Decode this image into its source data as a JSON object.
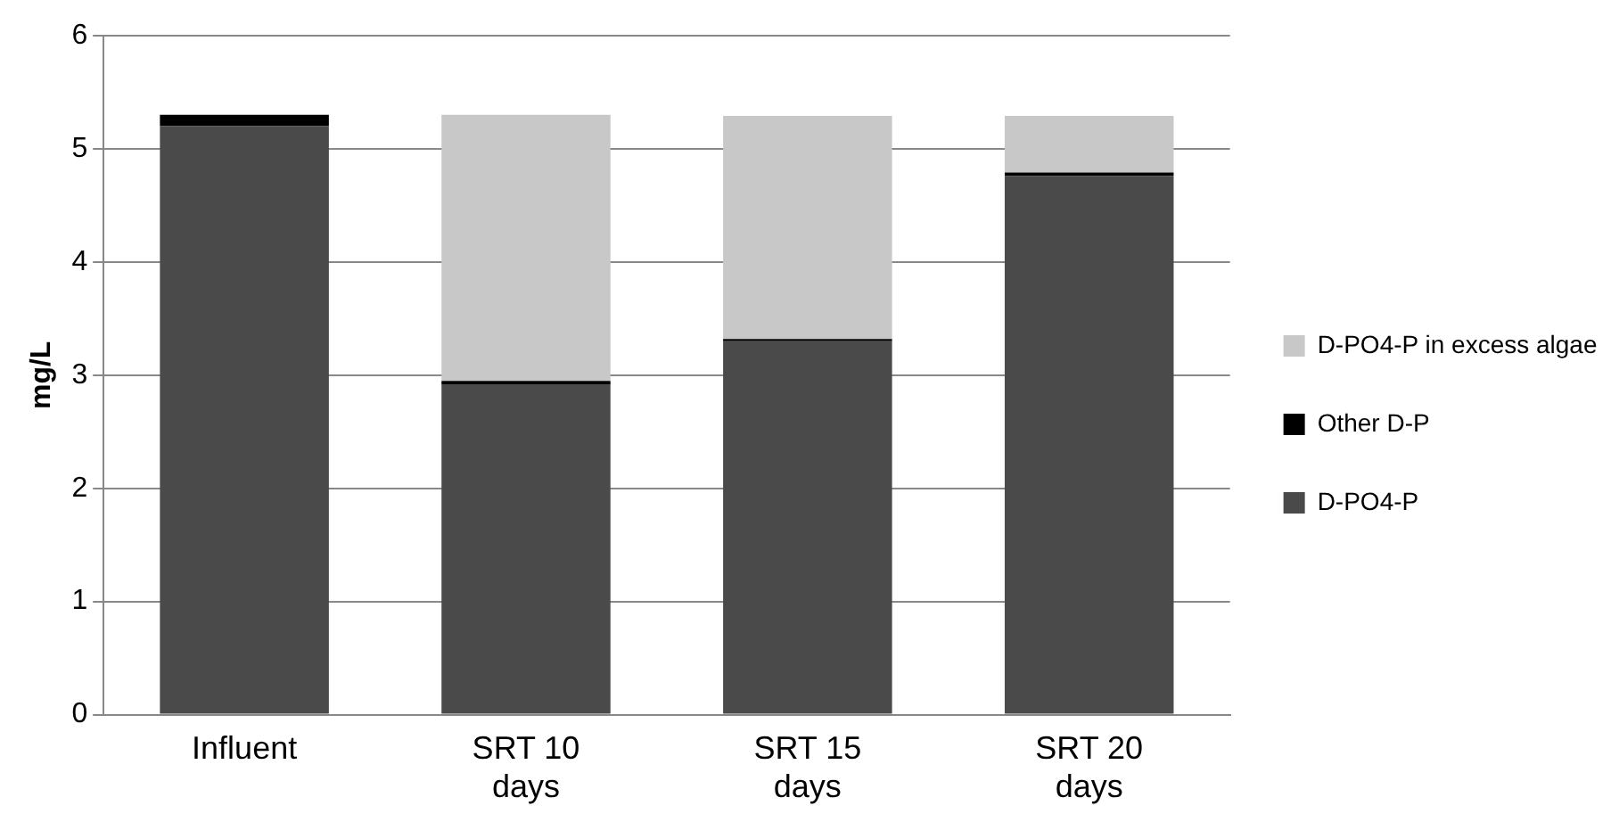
{
  "chart_data": {
    "type": "bar",
    "stacked": true,
    "ylabel": "mg/L",
    "categories": [
      "Influent",
      "SRT 10 days",
      "SRT 15 days",
      "SRT 20 days"
    ],
    "series": [
      {
        "name": "D-PO4-P",
        "color": "#4a4a4a",
        "values": [
          5.2,
          2.92,
          3.3,
          4.76
        ]
      },
      {
        "name": "Other D-P",
        "color": "#000000",
        "values": [
          0.1,
          0.03,
          0.02,
          0.03
        ]
      },
      {
        "name": "D-PO4-P in excess algae",
        "color": "#c8c8c8",
        "values": [
          0,
          2.35,
          1.97,
          0.5
        ]
      }
    ],
    "ylim": [
      0,
      6
    ],
    "yticks": [
      0,
      1,
      2,
      3,
      4,
      5,
      6
    ],
    "grid": "y",
    "legend": "right"
  }
}
